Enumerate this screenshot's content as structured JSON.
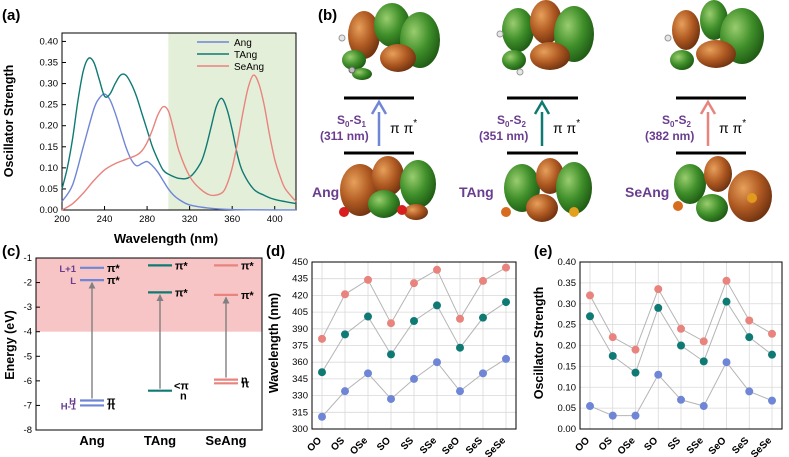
{
  "colors": {
    "ang": "#6f86d6",
    "tang": "#0f7a74",
    "seang": "#e9837d",
    "purple": "#6a3d8f",
    "pink_region": "#f7c5c6",
    "green_region": "#e4efd9",
    "grid": "#d9d9d9",
    "arrow": "#808080",
    "hl": "#808080"
  },
  "panel_labels": {
    "a": "(a)",
    "b": "(b)",
    "c": "(c)",
    "d": "(d)",
    "e": "(e)"
  },
  "chart_data": [
    {
      "id": "a",
      "type": "line",
      "title": "",
      "xlabel": "Wavelength (nm)",
      "ylabel": "Oscillator Strength",
      "xlim": [
        200,
        420
      ],
      "ylim": [
        0,
        0.42
      ],
      "xticks": [
        200,
        240,
        280,
        320,
        360,
        400
      ],
      "yticks": [
        0.0,
        0.05,
        0.1,
        0.15,
        0.2,
        0.25,
        0.3,
        0.35,
        0.4
      ],
      "ytick_labels": [
        "0.00",
        "0.05",
        "0.10",
        "0.15",
        "0.20",
        "0.25",
        "0.30",
        "0.35",
        "0.40"
      ],
      "shaded_region": [
        300,
        420
      ],
      "legend": [
        "Ang",
        "TAng",
        "SeAng"
      ],
      "series": [
        {
          "name": "Ang",
          "x": [
            200,
            210,
            220,
            230,
            235,
            240,
            245,
            250,
            255,
            260,
            265,
            270,
            275,
            280,
            285,
            290,
            295,
            300,
            305,
            310,
            320,
            340,
            360,
            380,
            400,
            420
          ],
          "y": [
            0.02,
            0.06,
            0.15,
            0.24,
            0.265,
            0.275,
            0.262,
            0.23,
            0.19,
            0.15,
            0.12,
            0.105,
            0.11,
            0.115,
            0.105,
            0.09,
            0.07,
            0.05,
            0.035,
            0.025,
            0.012,
            0.004,
            0.001,
            0.0005,
            0.0002,
            0.0001
          ]
        },
        {
          "name": "TAng",
          "x": [
            200,
            205,
            210,
            215,
            220,
            225,
            230,
            235,
            240,
            245,
            250,
            255,
            260,
            265,
            270,
            275,
            280,
            285,
            290,
            295,
            300,
            310,
            320,
            330,
            335,
            340,
            345,
            350,
            355,
            360,
            365,
            370,
            380,
            390,
            400,
            420
          ],
          "y": [
            0.05,
            0.1,
            0.17,
            0.26,
            0.33,
            0.36,
            0.35,
            0.31,
            0.27,
            0.275,
            0.3,
            0.32,
            0.32,
            0.3,
            0.27,
            0.23,
            0.19,
            0.15,
            0.12,
            0.095,
            0.085,
            0.075,
            0.078,
            0.11,
            0.145,
            0.195,
            0.245,
            0.265,
            0.24,
            0.19,
            0.13,
            0.09,
            0.05,
            0.035,
            0.025,
            0.015
          ]
        },
        {
          "name": "SeAng",
          "x": [
            200,
            210,
            220,
            230,
            240,
            250,
            260,
            270,
            275,
            280,
            285,
            290,
            295,
            300,
            305,
            310,
            320,
            330,
            340,
            350,
            355,
            360,
            365,
            370,
            375,
            380,
            385,
            390,
            395,
            400,
            405,
            410,
            420
          ],
          "y": [
            0.0,
            0.015,
            0.04,
            0.07,
            0.095,
            0.11,
            0.12,
            0.13,
            0.14,
            0.16,
            0.19,
            0.225,
            0.245,
            0.235,
            0.19,
            0.14,
            0.08,
            0.05,
            0.035,
            0.04,
            0.06,
            0.1,
            0.16,
            0.23,
            0.29,
            0.32,
            0.3,
            0.25,
            0.18,
            0.12,
            0.08,
            0.05,
            0.02
          ]
        }
      ]
    },
    {
      "id": "c",
      "type": "energy-level diagram",
      "ylabel": "Energy (eV)",
      "ylim": [
        -8,
        -1
      ],
      "yticks": [
        -8,
        -7,
        -6,
        -5,
        -4,
        -3,
        -2,
        -1
      ],
      "shaded_range": [
        -4,
        -1
      ],
      "categories": [
        "Ang",
        "TAng",
        "SeAng"
      ],
      "levels": [
        {
          "molecule": "Ang",
          "energy": -1.4,
          "label": "π*",
          "name": "L+1"
        },
        {
          "molecule": "Ang",
          "energy": -1.9,
          "label": "π*",
          "name": "L"
        },
        {
          "molecule": "Ang",
          "energy": -6.8,
          "label": "π",
          "name": "H"
        },
        {
          "molecule": "Ang",
          "energy": -7.0,
          "label": "π",
          "name": "H-1"
        },
        {
          "molecule": "TAng",
          "energy": -1.3,
          "label": "π*"
        },
        {
          "molecule": "TAng",
          "energy": -2.4,
          "label": "π*"
        },
        {
          "molecule": "TAng",
          "energy": -6.4,
          "label": "<π n"
        },
        {
          "molecule": "SeAng",
          "energy": -1.3,
          "label": "π*"
        },
        {
          "molecule": "SeAng",
          "energy": -2.5,
          "label": "π*"
        },
        {
          "molecule": "SeAng",
          "energy": -5.95,
          "label": "n"
        },
        {
          "molecule": "SeAng",
          "energy": -6.1,
          "label": "π"
        }
      ]
    },
    {
      "id": "d",
      "type": "scatter",
      "xlabel": "",
      "ylabel": "Wavelength (nm)",
      "categories": [
        "OO",
        "OS",
        "OSe",
        "SO",
        "SS",
        "SSe",
        "SeO",
        "SeS",
        "SeSe"
      ],
      "ylim": [
        300,
        450
      ],
      "yticks": [
        300,
        315,
        330,
        345,
        360,
        375,
        390,
        405,
        420,
        435,
        450
      ],
      "series": [
        {
          "name": "top",
          "values": [
            381,
            421,
            434,
            395,
            431,
            443,
            399,
            433,
            445
          ]
        },
        {
          "name": "mid",
          "values": [
            351,
            385,
            401,
            367,
            397,
            411,
            373,
            400,
            414
          ]
        },
        {
          "name": "bottom",
          "values": [
            311,
            334,
            350,
            327,
            345,
            360,
            334,
            350,
            363
          ]
        }
      ]
    },
    {
      "id": "e",
      "type": "scatter",
      "xlabel": "",
      "ylabel": "Oscillator Strength",
      "categories": [
        "OO",
        "OS",
        "OSe",
        "SO",
        "SS",
        "SSe",
        "SeO",
        "SeS",
        "SeSe"
      ],
      "ylim": [
        0,
        0.4
      ],
      "yticks": [
        0.0,
        0.05,
        0.1,
        0.15,
        0.2,
        0.25,
        0.3,
        0.35,
        0.4
      ],
      "ytick_labels": [
        "0.00",
        "0.05",
        "0.10",
        "0.15",
        "0.20",
        "0.25",
        "0.30",
        "0.35",
        "0.40"
      ],
      "series": [
        {
          "name": "top",
          "values": [
            0.32,
            0.22,
            0.19,
            0.335,
            0.24,
            0.21,
            0.355,
            0.26,
            0.228
          ]
        },
        {
          "name": "mid",
          "values": [
            0.27,
            0.175,
            0.135,
            0.29,
            0.2,
            0.162,
            0.305,
            0.22,
            0.178
          ]
        },
        {
          "name": "bottom",
          "values": [
            0.055,
            0.032,
            0.032,
            0.13,
            0.07,
            0.055,
            0.16,
            0.09,
            0.068
          ]
        }
      ]
    }
  ],
  "panel_b": {
    "transitions": [
      {
        "molecule": "Ang",
        "state_main": "S",
        "sub0": "0",
        "dash": "-S",
        "sub1": "1",
        "nm": "(311 nm)",
        "pp": "π π",
        "star": "*"
      },
      {
        "molecule": "TAng",
        "state_main": "S",
        "sub0": "0",
        "dash": "-S",
        "sub1": "2",
        "nm": "(351 nm)",
        "pp": "π π",
        "star": "*"
      },
      {
        "molecule": "SeAng",
        "state_main": "S",
        "sub0": "0",
        "dash": "-S",
        "sub1": "2",
        "nm": "(382 nm)",
        "pp": "π π",
        "star": "*"
      }
    ]
  }
}
